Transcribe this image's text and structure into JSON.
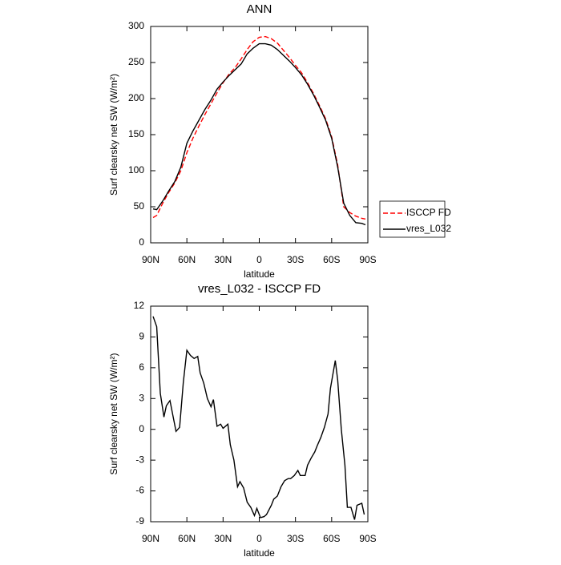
{
  "chart_data": [
    {
      "type": "line",
      "title": "ANN",
      "xlabel": "latitude",
      "ylabel": "Surf clearsky net SW (W/m²)",
      "x": [
        88,
        85,
        80,
        75,
        70,
        65,
        60,
        55,
        50,
        45,
        40,
        35,
        30,
        25,
        20,
        15,
        10,
        5,
        0,
        -5,
        -10,
        -15,
        -20,
        -25,
        -30,
        -35,
        -40,
        -45,
        -50,
        -55,
        -60,
        -65,
        -70,
        -75,
        -80,
        -85,
        -88
      ],
      "series": [
        {
          "name": "ISCCP FD",
          "color": "#ff0000",
          "linestyle": "dashed",
          "values": [
            35,
            38,
            55,
            70,
            83,
            100,
            125,
            145,
            162,
            178,
            193,
            208,
            222,
            234,
            243,
            255,
            268,
            279,
            285,
            286,
            283,
            277,
            267,
            257,
            246,
            236,
            222,
            207,
            190,
            172,
            147,
            108,
            50,
            42,
            37,
            34,
            33
          ]
        },
        {
          "name": "vres_L032",
          "color": "#000000",
          "linestyle": "solid",
          "values": [
            47,
            46,
            58,
            72,
            85,
            105,
            138,
            155,
            170,
            185,
            198,
            213,
            223,
            232,
            240,
            248,
            262,
            270,
            276,
            276,
            274,
            268,
            260,
            252,
            243,
            233,
            220,
            205,
            188,
            170,
            145,
            105,
            55,
            38,
            28,
            27,
            25
          ]
        }
      ],
      "xlim": [
        90,
        -90
      ],
      "xticks": [
        {
          "value": 90,
          "label": "90N"
        },
        {
          "value": 60,
          "label": "60N"
        },
        {
          "value": 30,
          "label": "30N"
        },
        0,
        {
          "value": -30,
          "label": "30S"
        },
        {
          "value": -60,
          "label": "60S"
        },
        {
          "value": -90,
          "label": "90S"
        }
      ],
      "ylim": [
        0,
        300
      ],
      "yticks": [
        0,
        50,
        100,
        150,
        200,
        250,
        300
      ],
      "grid": false,
      "legend": "right"
    },
    {
      "type": "line",
      "title": "vres_L032 - ISCCP FD",
      "xlabel": "latitude",
      "ylabel": "Surf clearsky net SW (W/m²)",
      "x": [
        88,
        85,
        82,
        79,
        77,
        74,
        71,
        69,
        66,
        63,
        60,
        57,
        54,
        51,
        49,
        46,
        43,
        40,
        38,
        35,
        32,
        30,
        26,
        24,
        21,
        18,
        16,
        13,
        10,
        7,
        4,
        2,
        -1,
        -4,
        -6,
        -10,
        -12,
        -15,
        -18,
        -21,
        -24,
        -26,
        -29,
        -32,
        -34,
        -38,
        -40,
        -43,
        -46,
        -48,
        -51,
        -54,
        -57,
        -59,
        -63,
        -65,
        -68,
        -71,
        -73,
        -76,
        -79,
        -81,
        -85,
        -87
      ],
      "values": [
        11,
        10,
        3.5,
        1.2,
        2.3,
        2.8,
        1,
        -0.2,
        0.2,
        4.5,
        7.7,
        7.2,
        6.9,
        7.1,
        5.5,
        4.5,
        3,
        2.2,
        2.9,
        0.3,
        0.5,
        0.1,
        0.5,
        -1.5,
        -3,
        -5.6,
        -5.1,
        -5.7,
        -7.1,
        -7.6,
        -8.4,
        -7.7,
        -8.6,
        -8.5,
        -8.3,
        -7.4,
        -6.8,
        -6.5,
        -5.6,
        -5,
        -4.8,
        -4.8,
        -4.5,
        -4,
        -4.5,
        -4.5,
        -3.5,
        -2.8,
        -2.2,
        -1.6,
        -0.8,
        0.2,
        1.5,
        4,
        6.7,
        4.8,
        0,
        -3.5,
        -7.6,
        -7.6,
        -8.8,
        -7.4,
        -7.2,
        -8.3
      ],
      "color": "#000000",
      "xlim": [
        90,
        -90
      ],
      "xticks": [
        {
          "value": 90,
          "label": "90N"
        },
        {
          "value": 60,
          "label": "60N"
        },
        {
          "value": 30,
          "label": "30N"
        },
        0,
        {
          "value": -30,
          "label": "30S"
        },
        {
          "value": -60,
          "label": "60S"
        },
        {
          "value": -90,
          "label": "90S"
        }
      ],
      "ylim": [
        -9,
        12
      ],
      "yticks": [
        -9,
        -6,
        -3,
        0,
        3,
        6,
        9,
        12
      ],
      "grid": false
    }
  ]
}
